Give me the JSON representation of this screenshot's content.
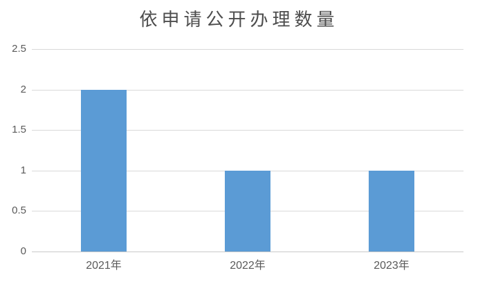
{
  "chart_data": {
    "type": "bar",
    "title": "依申请公开办理数量",
    "categories": [
      "2021年",
      "2022年",
      "2023年"
    ],
    "values": [
      2,
      1,
      1
    ],
    "xlabel": "",
    "ylabel": "",
    "ylim": [
      0,
      2.5
    ],
    "y_ticks": [
      0,
      0.5,
      1,
      1.5,
      2,
      2.5
    ],
    "y_tick_labels": [
      "0",
      "0.5",
      "1",
      "1.5",
      "2",
      "2.5"
    ],
    "grid": true,
    "legend": "none",
    "colors": {
      "bar": "#5B9BD5",
      "gridline": "#D9D9D9",
      "axis_line": "#C9C9C9",
      "tick_text": "#595959",
      "title_text": "#4D4D4D"
    }
  }
}
